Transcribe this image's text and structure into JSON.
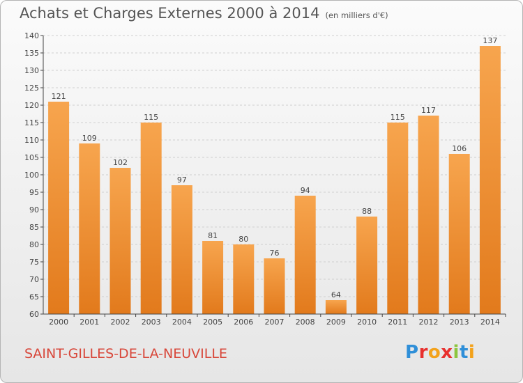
{
  "header": {
    "title": "Achats et Charges Externes 2000 à 2014",
    "unit": "(en milliers d'€)"
  },
  "commune": "SAINT-GILLES-DE-LA-NEUVILLE",
  "logo": {
    "text": "Proxiti",
    "letters": [
      {
        "ch": "P",
        "color": "#2f8fd8"
      },
      {
        "ch": "r",
        "color": "#e8302e"
      },
      {
        "ch": "o",
        "color": "#f3a21b"
      },
      {
        "ch": "x",
        "color": "#e8302e"
      },
      {
        "ch": "i",
        "color": "#8cc63f"
      },
      {
        "ch": "t",
        "color": "#2f8fd8"
      },
      {
        "ch": "i",
        "color": "#f3a21b"
      }
    ]
  },
  "colors": {
    "bar_top": "#f7a54e",
    "bar_bottom": "#e27a1c",
    "grid": "#cfcfcf",
    "axis": "#444444"
  },
  "chart_data": {
    "type": "bar",
    "title": "Achats et Charges Externes 2000 à 2014",
    "subtitle": "(en milliers d'€)",
    "xlabel": "",
    "ylabel": "",
    "categories": [
      "2000",
      "2001",
      "2002",
      "2003",
      "2004",
      "2005",
      "2006",
      "2007",
      "2008",
      "2009",
      "2010",
      "2011",
      "2012",
      "2013",
      "2014"
    ],
    "values": [
      121,
      109,
      102,
      115,
      97,
      81,
      80,
      76,
      94,
      64,
      88,
      115,
      117,
      106,
      137
    ],
    "ylim": [
      60,
      140
    ],
    "yticks": [
      60,
      65,
      70,
      75,
      80,
      85,
      90,
      95,
      100,
      105,
      110,
      115,
      120,
      125,
      130,
      135,
      140
    ],
    "grid": true,
    "legend": "none"
  }
}
